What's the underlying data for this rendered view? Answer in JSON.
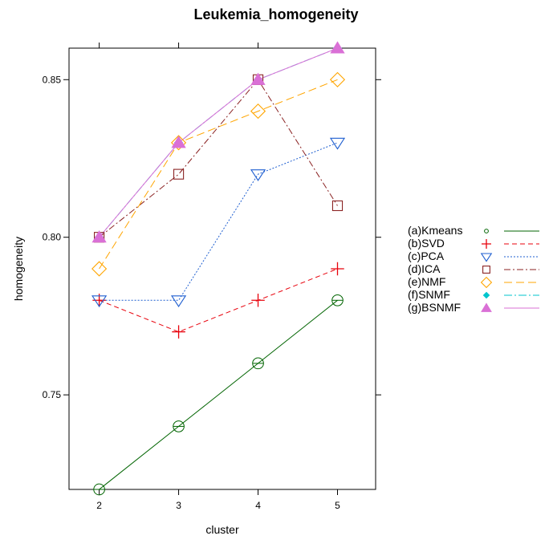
{
  "chart_data": {
    "type": "line",
    "title": "Leukemia_homogeneity",
    "xlabel": "cluster",
    "ylabel": "homogeneity",
    "x": [
      2,
      3,
      4,
      5
    ],
    "x_ticks": [
      "2",
      "3",
      "4",
      "5"
    ],
    "xlim": [
      1.62,
      5.48
    ],
    "y_ticks": [
      "0.75",
      "0.80",
      "0.85"
    ],
    "y_tick_values": [
      0.75,
      0.8,
      0.85
    ],
    "ylim": [
      0.72,
      0.86
    ],
    "grid": false,
    "legend_position": "right",
    "series": [
      {
        "name": "(a)Kmeans",
        "values": [
          0.72,
          0.74,
          0.76,
          0.78
        ],
        "color": "#006400",
        "marker": "circle",
        "dash": "",
        "legend_marker": "circle-small"
      },
      {
        "name": "(b)SVD",
        "values": [
          0.78,
          0.77,
          0.78,
          0.79
        ],
        "color": "#e8000b",
        "marker": "plus",
        "dash": "6,4",
        "legend_marker": "plus"
      },
      {
        "name": "(c)PCA",
        "values": [
          0.78,
          0.78,
          0.82,
          0.83
        ],
        "color": "#1f5fd0",
        "marker": "triangle-down",
        "dash": "2,2",
        "legend_marker": "triangle-down"
      },
      {
        "name": "(d)ICA",
        "values": [
          0.8,
          0.82,
          0.85,
          0.81
        ],
        "color": "#8b2323",
        "marker": "square",
        "dash": "8,3,2,3",
        "legend_marker": "square"
      },
      {
        "name": "(e)NMF",
        "values": [
          0.79,
          0.83,
          0.84,
          0.85
        ],
        "color": "#ffa500",
        "marker": "diamond",
        "dash": "10,5",
        "legend_marker": "diamond"
      },
      {
        "name": "(f)SNMF",
        "values": [
          0.8,
          0.83,
          0.85,
          0.86
        ],
        "color": "#00c5cd",
        "marker": "diamond-filled",
        "dash": "10,3,2,3",
        "legend_marker": "diamond-filled"
      },
      {
        "name": "(g)BSNMF",
        "values": [
          0.8,
          0.83,
          0.85,
          0.86
        ],
        "color": "#da70d6",
        "marker": "triangle-filled",
        "dash": "",
        "legend_marker": "triangle-filled"
      }
    ]
  }
}
